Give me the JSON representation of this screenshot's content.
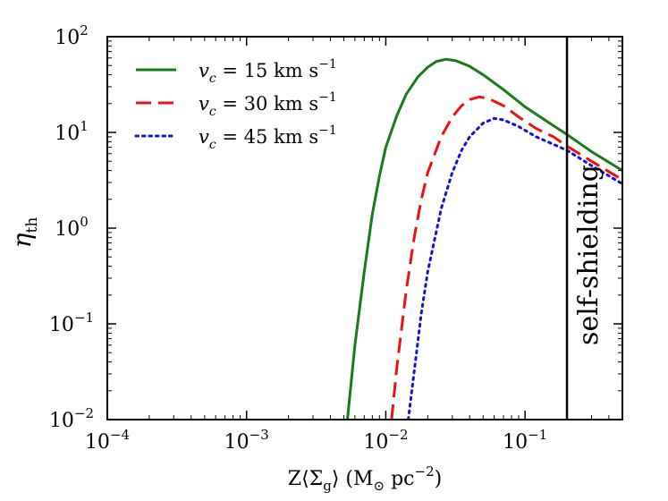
{
  "chart_data": {
    "type": "line",
    "x_scale": "log",
    "y_scale": "log",
    "xlim": [
      0.0001,
      0.5
    ],
    "ylim": [
      0.01,
      100
    ],
    "xlabel": {
      "base": "Z⟨Σ",
      "sub": "g",
      "rest": "⟩ (M",
      "sun": "⊙",
      "unit": " pc",
      "exp": "−2",
      "close": ")"
    },
    "ylabel": {
      "base": "η",
      "sub": "th"
    },
    "x_ticks": [
      {
        "value": 0.0001,
        "base": "10",
        "exp": "−4"
      },
      {
        "value": 0.001,
        "base": "10",
        "exp": "−3"
      },
      {
        "value": 0.01,
        "base": "10",
        "exp": "−2"
      },
      {
        "value": 0.1,
        "base": "10",
        "exp": "−1"
      }
    ],
    "y_ticks": [
      {
        "value": 0.01,
        "base": "10",
        "exp": "−2"
      },
      {
        "value": 0.1,
        "base": "10",
        "exp": "−1"
      },
      {
        "value": 1,
        "base": "10",
        "exp": "0"
      },
      {
        "value": 10,
        "base": "10",
        "exp": "1"
      },
      {
        "value": 100,
        "base": "10",
        "exp": "2"
      }
    ],
    "legend_position": "top-left",
    "series": [
      {
        "name": "v_c = 15 km s^-1",
        "legend": {
          "v": "v",
          "sub": "c",
          "eq": " = 15 km s",
          "exp": "−1"
        },
        "color": "#1a7a1a",
        "dash": "solid",
        "points": [
          [
            0.0053,
            0.01
          ],
          [
            0.006,
            0.06
          ],
          [
            0.007,
            0.35
          ],
          [
            0.008,
            1.4
          ],
          [
            0.009,
            3.5
          ],
          [
            0.01,
            7
          ],
          [
            0.012,
            15
          ],
          [
            0.014,
            25
          ],
          [
            0.017,
            38
          ],
          [
            0.02,
            48
          ],
          [
            0.023,
            55
          ],
          [
            0.027,
            58
          ],
          [
            0.032,
            56
          ],
          [
            0.04,
            49
          ],
          [
            0.05,
            40
          ],
          [
            0.07,
            28
          ],
          [
            0.1,
            18.5
          ],
          [
            0.15,
            12.5
          ],
          [
            0.2,
            9.5
          ],
          [
            0.3,
            6.3
          ],
          [
            0.5,
            4.0
          ]
        ]
      },
      {
        "name": "v_c = 30 km s^-1",
        "legend": {
          "v": "v",
          "sub": "c",
          "eq": " = 30 km s",
          "exp": "−1"
        },
        "color": "#ee1111",
        "dash": "dashed",
        "points": [
          [
            0.011,
            0.01
          ],
          [
            0.012,
            0.035
          ],
          [
            0.014,
            0.22
          ],
          [
            0.016,
            0.8
          ],
          [
            0.018,
            2.0
          ],
          [
            0.02,
            3.8
          ],
          [
            0.025,
            9
          ],
          [
            0.03,
            14.5
          ],
          [
            0.035,
            19
          ],
          [
            0.04,
            22
          ],
          [
            0.047,
            23.5
          ],
          [
            0.055,
            22.5
          ],
          [
            0.07,
            19
          ],
          [
            0.09,
            14.5
          ],
          [
            0.12,
            11
          ],
          [
            0.16,
            9
          ],
          [
            0.2,
            7.2
          ],
          [
            0.3,
            5.0
          ],
          [
            0.5,
            3.2
          ]
        ]
      },
      {
        "name": "v_c = 45 km s^-1",
        "legend": {
          "v": "v",
          "sub": "c",
          "eq": " = 45 km s",
          "exp": "−1"
        },
        "color": "#1111dd",
        "dash": "dotted",
        "points": [
          [
            0.0145,
            0.01
          ],
          [
            0.016,
            0.032
          ],
          [
            0.018,
            0.13
          ],
          [
            0.02,
            0.35
          ],
          [
            0.025,
            1.6
          ],
          [
            0.03,
            3.8
          ],
          [
            0.035,
            6.5
          ],
          [
            0.04,
            9
          ],
          [
            0.05,
            12.5
          ],
          [
            0.06,
            14
          ],
          [
            0.07,
            13.5
          ],
          [
            0.09,
            11.5
          ],
          [
            0.12,
            9
          ],
          [
            0.16,
            7.5
          ],
          [
            0.2,
            6.5
          ],
          [
            0.3,
            4.5
          ],
          [
            0.5,
            2.9
          ]
        ]
      }
    ],
    "annotations": [
      {
        "type": "vline",
        "x": 0.2,
        "color": "#000000",
        "label": "self-shielding"
      }
    ]
  }
}
